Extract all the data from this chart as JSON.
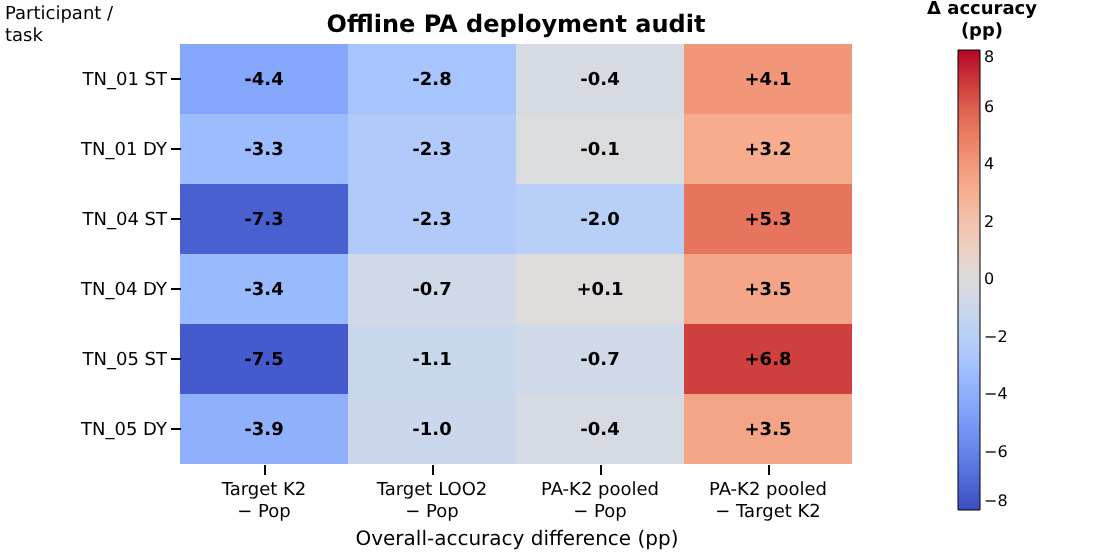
{
  "chart_data": {
    "type": "heatmap",
    "title": "Offline PA deployment audit",
    "xlabel": "Overall-accuracy difference (pp)",
    "ylabel": "Participant /\ntask",
    "clabel": "Δ accuracy\n(pp)",
    "categories": [
      "Target K2\n− Pop",
      "Target LOO2\n− Pop",
      "PA-K2 pooled\n− Pop",
      "PA-K2 pooled\n− Target K2"
    ],
    "y_categories": [
      "TN_01 ST",
      "TN_01 DY",
      "TN_04 ST",
      "TN_04 DY",
      "TN_05 ST",
      "TN_05 DY"
    ],
    "cells": [
      [
        -4.4,
        -2.8,
        -0.4,
        4.1
      ],
      [
        -3.3,
        -2.3,
        -0.1,
        3.2
      ],
      [
        -7.3,
        -2.3,
        -2.0,
        5.3
      ],
      [
        -3.4,
        -0.7,
        0.1,
        3.5
      ],
      [
        -7.5,
        -1.1,
        -0.7,
        6.8
      ],
      [
        -3.9,
        -1.0,
        -0.4,
        3.5
      ]
    ],
    "cell_labels": [
      [
        "-4.4",
        "-2.8",
        "-0.4",
        "+4.1"
      ],
      [
        "-3.3",
        "-2.3",
        "-0.1",
        "+3.2"
      ],
      [
        "-7.3",
        "-2.3",
        "-2.0",
        "+5.3"
      ],
      [
        "-3.4",
        "-0.7",
        "+0.1",
        "+3.5"
      ],
      [
        "-7.5",
        "-1.1",
        "-0.7",
        "+6.8"
      ],
      [
        "-3.9",
        "-1.0",
        "-0.4",
        "+3.5"
      ]
    ],
    "clim": [
      -8,
      8
    ],
    "cticks": [
      -8,
      -6,
      -4,
      -2,
      0,
      2,
      4,
      6,
      8
    ]
  }
}
